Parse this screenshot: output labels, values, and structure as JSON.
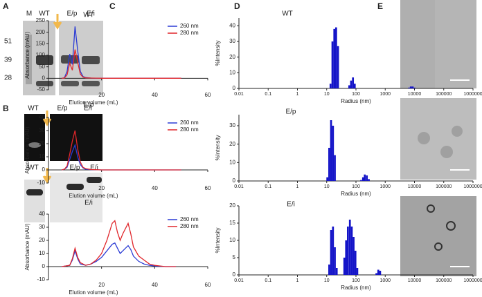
{
  "panel_labels": [
    "A",
    "B",
    "C",
    "D",
    "E"
  ],
  "gel_a": {
    "lanes": [
      "M",
      "WT",
      "E/p",
      "E/i"
    ],
    "markers": [
      51,
      39,
      28
    ]
  },
  "gel_b": {
    "top_lanes": [
      "WT",
      "E/p",
      "E/i"
    ],
    "bottom_lanes": [
      "WT",
      "E/p",
      "E/i"
    ]
  },
  "chart_data": [
    {
      "type": "line",
      "title": "WT",
      "x_label": "Elution volume (mL)",
      "y_label": "Absorbance (mAU)",
      "legend": "upper right",
      "xlim": [
        0,
        60
      ],
      "xticks": [
        20,
        40,
        60
      ],
      "ylim": [
        -50,
        250
      ],
      "yticks": [
        -50,
        0,
        50,
        100,
        150,
        200,
        250
      ],
      "x": [
        5,
        6,
        7,
        8,
        9,
        10,
        11,
        12,
        13,
        14,
        16,
        20,
        25,
        30,
        40,
        50
      ],
      "series": [
        {
          "name": "260 nm",
          "color": "#2b3bd4",
          "values": [
            0,
            2,
            30,
            105,
            60,
            225,
            120,
            30,
            8,
            3,
            1,
            0,
            0,
            0,
            0,
            0
          ]
        },
        {
          "name": "280 nm",
          "color": "#e0262b",
          "values": [
            0,
            1,
            15,
            65,
            35,
            125,
            70,
            18,
            5,
            2,
            1,
            0,
            0,
            0,
            0,
            0
          ]
        }
      ]
    },
    {
      "type": "line",
      "title": "E/p",
      "x_label": "Elution volume (mL)",
      "y_label": "Absorbance (mAU)",
      "legend": "upper right",
      "xlim": [
        0,
        60
      ],
      "xticks": [
        20,
        40,
        60
      ],
      "ylim": [
        -10,
        40
      ],
      "yticks": [
        -10,
        0,
        10,
        20,
        30,
        40
      ],
      "x": [
        5,
        6,
        7,
        8,
        9,
        10,
        11,
        12,
        13,
        14,
        16,
        20,
        25,
        30,
        40,
        50
      ],
      "series": [
        {
          "name": "260 nm",
          "color": "#2b3bd4",
          "values": [
            0,
            0.5,
            2,
            8,
            14,
            19,
            10,
            4,
            1.5,
            0.5,
            0.2,
            0,
            0,
            0,
            0,
            0
          ]
        },
        {
          "name": "280 nm",
          "color": "#e0262b",
          "values": [
            0,
            0.5,
            3,
            12,
            22,
            30,
            16,
            6,
            2,
            1,
            0.3,
            0,
            0,
            0,
            0,
            0
          ]
        }
      ]
    },
    {
      "type": "line",
      "title": "E/i",
      "x_label": "Elution volume (mL)",
      "y_label": "Absorbance (mAU)",
      "legend": "upper right",
      "xlim": [
        0,
        60
      ],
      "xticks": [
        20,
        40,
        60
      ],
      "ylim": [
        -10,
        40
      ],
      "yticks": [
        -10,
        0,
        10,
        20,
        30,
        40
      ],
      "x": [
        5,
        8,
        9,
        10,
        11,
        12,
        14,
        16,
        18,
        20,
        22,
        24,
        25,
        26,
        27,
        28,
        30,
        31,
        32,
        34,
        36,
        38,
        40,
        44,
        48
      ],
      "series": [
        {
          "name": "260 nm",
          "color": "#2b3bd4",
          "values": [
            0,
            1,
            5,
            12,
            6,
            2,
            1,
            2,
            4,
            7,
            12,
            17,
            18,
            14,
            10,
            12,
            16,
            13,
            8,
            4,
            2,
            1,
            0.5,
            0,
            0
          ]
        },
        {
          "name": "280 nm",
          "color": "#e0262b",
          "values": [
            0,
            1,
            6,
            14,
            7,
            3,
            1,
            2,
            5,
            10,
            20,
            33,
            35,
            26,
            20,
            25,
            33,
            25,
            15,
            8,
            5,
            2,
            1,
            0,
            0
          ]
        }
      ]
    },
    {
      "type": "bar",
      "title": "WT",
      "x_label": "Radius (nm)",
      "y_label": "%Intensity",
      "log_x": true,
      "color": "#1414c8",
      "xlim": [
        0.01,
        1000000
      ],
      "xticks": [
        0.01,
        0.1,
        1,
        10,
        100,
        1000,
        10000,
        100000,
        1000000
      ],
      "ylim": [
        0,
        45
      ],
      "yticks": [
        0,
        10,
        20,
        30,
        40
      ],
      "x": [
        13.5,
        15.7,
        18.2,
        21,
        24.4,
        59,
        68,
        79,
        91,
        6500,
        7500,
        8700,
        10100
      ],
      "values": [
        3,
        30,
        38,
        39,
        27,
        2,
        5,
        7,
        3,
        0.5,
        1.2,
        1.2,
        0.5
      ]
    },
    {
      "type": "bar",
      "title": "E/p",
      "x_label": "Radius (nm)",
      "y_label": "%Intensity",
      "log_x": true,
      "color": "#1414c8",
      "xlim": [
        0.01,
        1000000
      ],
      "xticks": [
        0.01,
        0.1,
        1,
        10,
        100,
        1000,
        10000,
        100000,
        1000000
      ],
      "ylim": [
        0,
        36
      ],
      "yticks": [
        0,
        10,
        20,
        30
      ],
      "x": [
        10.5,
        12.2,
        14.1,
        16.4,
        19,
        150,
        175,
        200,
        235,
        275
      ],
      "values": [
        2,
        18,
        33,
        30,
        14,
        0.5,
        2,
        3.5,
        3,
        1
      ]
    },
    {
      "type": "bar",
      "title": "E/i",
      "x_label": "Radius (nm)",
      "y_label": "%Intensity",
      "log_x": true,
      "color": "#1414c8",
      "xlim": [
        0.01,
        1000000
      ],
      "xticks": [
        0.01,
        0.1,
        1,
        10,
        100,
        1000,
        10000,
        100000,
        1000000
      ],
      "ylim": [
        0,
        20
      ],
      "yticks": [
        0,
        5,
        10,
        15,
        20
      ],
      "x": [
        12.2,
        14.1,
        16.4,
        19,
        22,
        40,
        46,
        53,
        62,
        72,
        83,
        96,
        111,
        500,
        580,
        670
      ],
      "values": [
        3,
        13,
        14,
        8,
        2,
        5,
        10,
        14,
        16,
        14,
        11,
        7,
        2,
        0.5,
        1.5,
        1.2
      ]
    }
  ]
}
